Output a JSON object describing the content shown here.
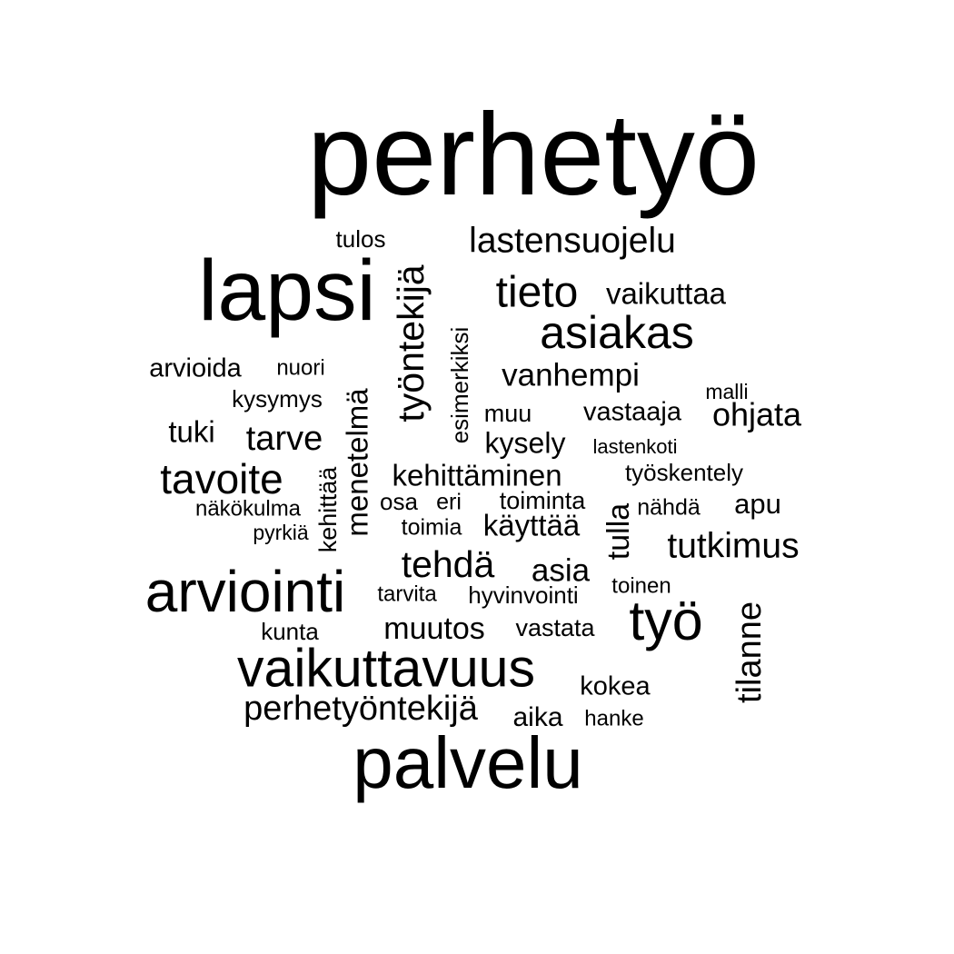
{
  "text_color": "#000000",
  "background_color": "#ffffff",
  "words": [
    {
      "text": "perhetyö"
    },
    {
      "text": "lapsi"
    },
    {
      "text": "palvelu"
    },
    {
      "text": "arviointi"
    },
    {
      "text": "vaikuttavuus"
    },
    {
      "text": "työ"
    },
    {
      "text": "asiakas"
    },
    {
      "text": "tieto"
    },
    {
      "text": "lastensuojelu"
    },
    {
      "text": "työntekijä"
    },
    {
      "text": "tavoite"
    },
    {
      "text": "tehdä"
    },
    {
      "text": "perhetyöntekijä"
    },
    {
      "text": "tutkimus"
    },
    {
      "text": "tilanne"
    },
    {
      "text": "vanhempi"
    },
    {
      "text": "menetelmä"
    },
    {
      "text": "kehittäminen"
    },
    {
      "text": "vaikuttaa"
    },
    {
      "text": "muutos"
    },
    {
      "text": "tarve"
    },
    {
      "text": "ohjata"
    },
    {
      "text": "asia"
    },
    {
      "text": "kysely"
    },
    {
      "text": "käyttää"
    },
    {
      "text": "tulla"
    },
    {
      "text": "arvioida"
    },
    {
      "text": "tuki"
    },
    {
      "text": "vastaaja"
    },
    {
      "text": "kokea"
    },
    {
      "text": "aika"
    },
    {
      "text": "apu"
    },
    {
      "text": "tulos"
    },
    {
      "text": "esimerkiksi"
    },
    {
      "text": "kysymys"
    },
    {
      "text": "muu"
    },
    {
      "text": "toiminta"
    },
    {
      "text": "vastata"
    },
    {
      "text": "työskentely"
    },
    {
      "text": "osa"
    },
    {
      "text": "kehittää"
    },
    {
      "text": "hyvinvointi"
    },
    {
      "text": "kunta"
    },
    {
      "text": "nuori"
    },
    {
      "text": "näkökulma"
    },
    {
      "text": "eri"
    },
    {
      "text": "toimia"
    },
    {
      "text": "tarvita"
    },
    {
      "text": "toinen"
    },
    {
      "text": "nähdä"
    },
    {
      "text": "hanke"
    },
    {
      "text": "lastenkoti"
    },
    {
      "text": "malli"
    },
    {
      "text": "pyrkiä"
    }
  ]
}
